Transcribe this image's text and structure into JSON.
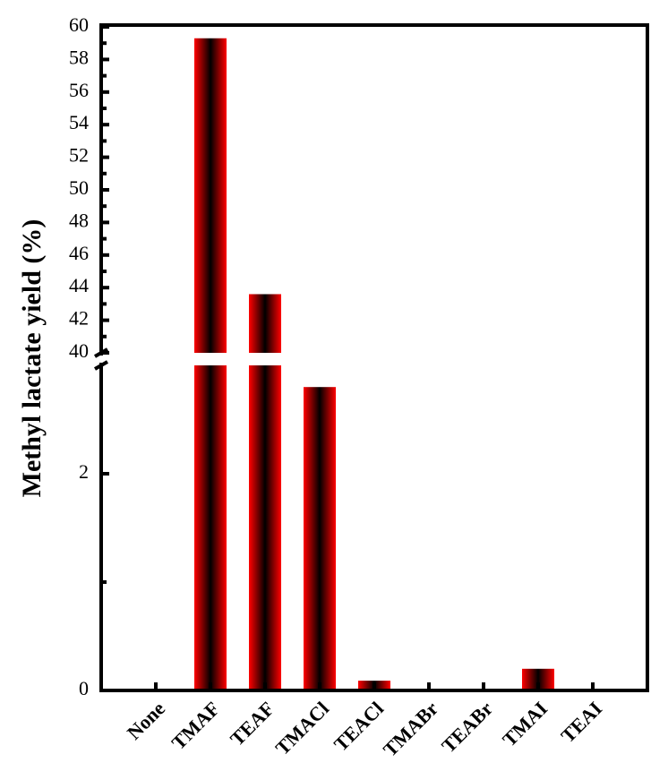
{
  "chart_data": {
    "type": "bar",
    "y_label": "Methyl lactate yield (%)",
    "categories": [
      "None",
      "TMAF",
      "TEAF",
      "TMACl",
      "TEACl",
      "TMABr",
      "TEABr",
      "TMAI",
      "TEAI"
    ],
    "values": [
      0,
      59.3,
      43.6,
      2.8,
      0.09,
      0,
      0,
      0.2,
      0
    ],
    "color": "#ff0000",
    "axis_break": true,
    "segments": [
      {
        "ylim": [
          0,
          3
        ],
        "yticks": [
          0,
          2
        ],
        "minor_yticks": [
          1
        ]
      },
      {
        "ylim": [
          40,
          60
        ],
        "yticks": [
          40,
          42,
          44,
          46,
          48,
          50,
          52,
          54,
          56,
          58,
          60
        ],
        "minor_yticks": [
          41,
          43,
          45,
          47,
          49,
          51,
          53,
          55,
          57,
          59
        ]
      }
    ]
  }
}
